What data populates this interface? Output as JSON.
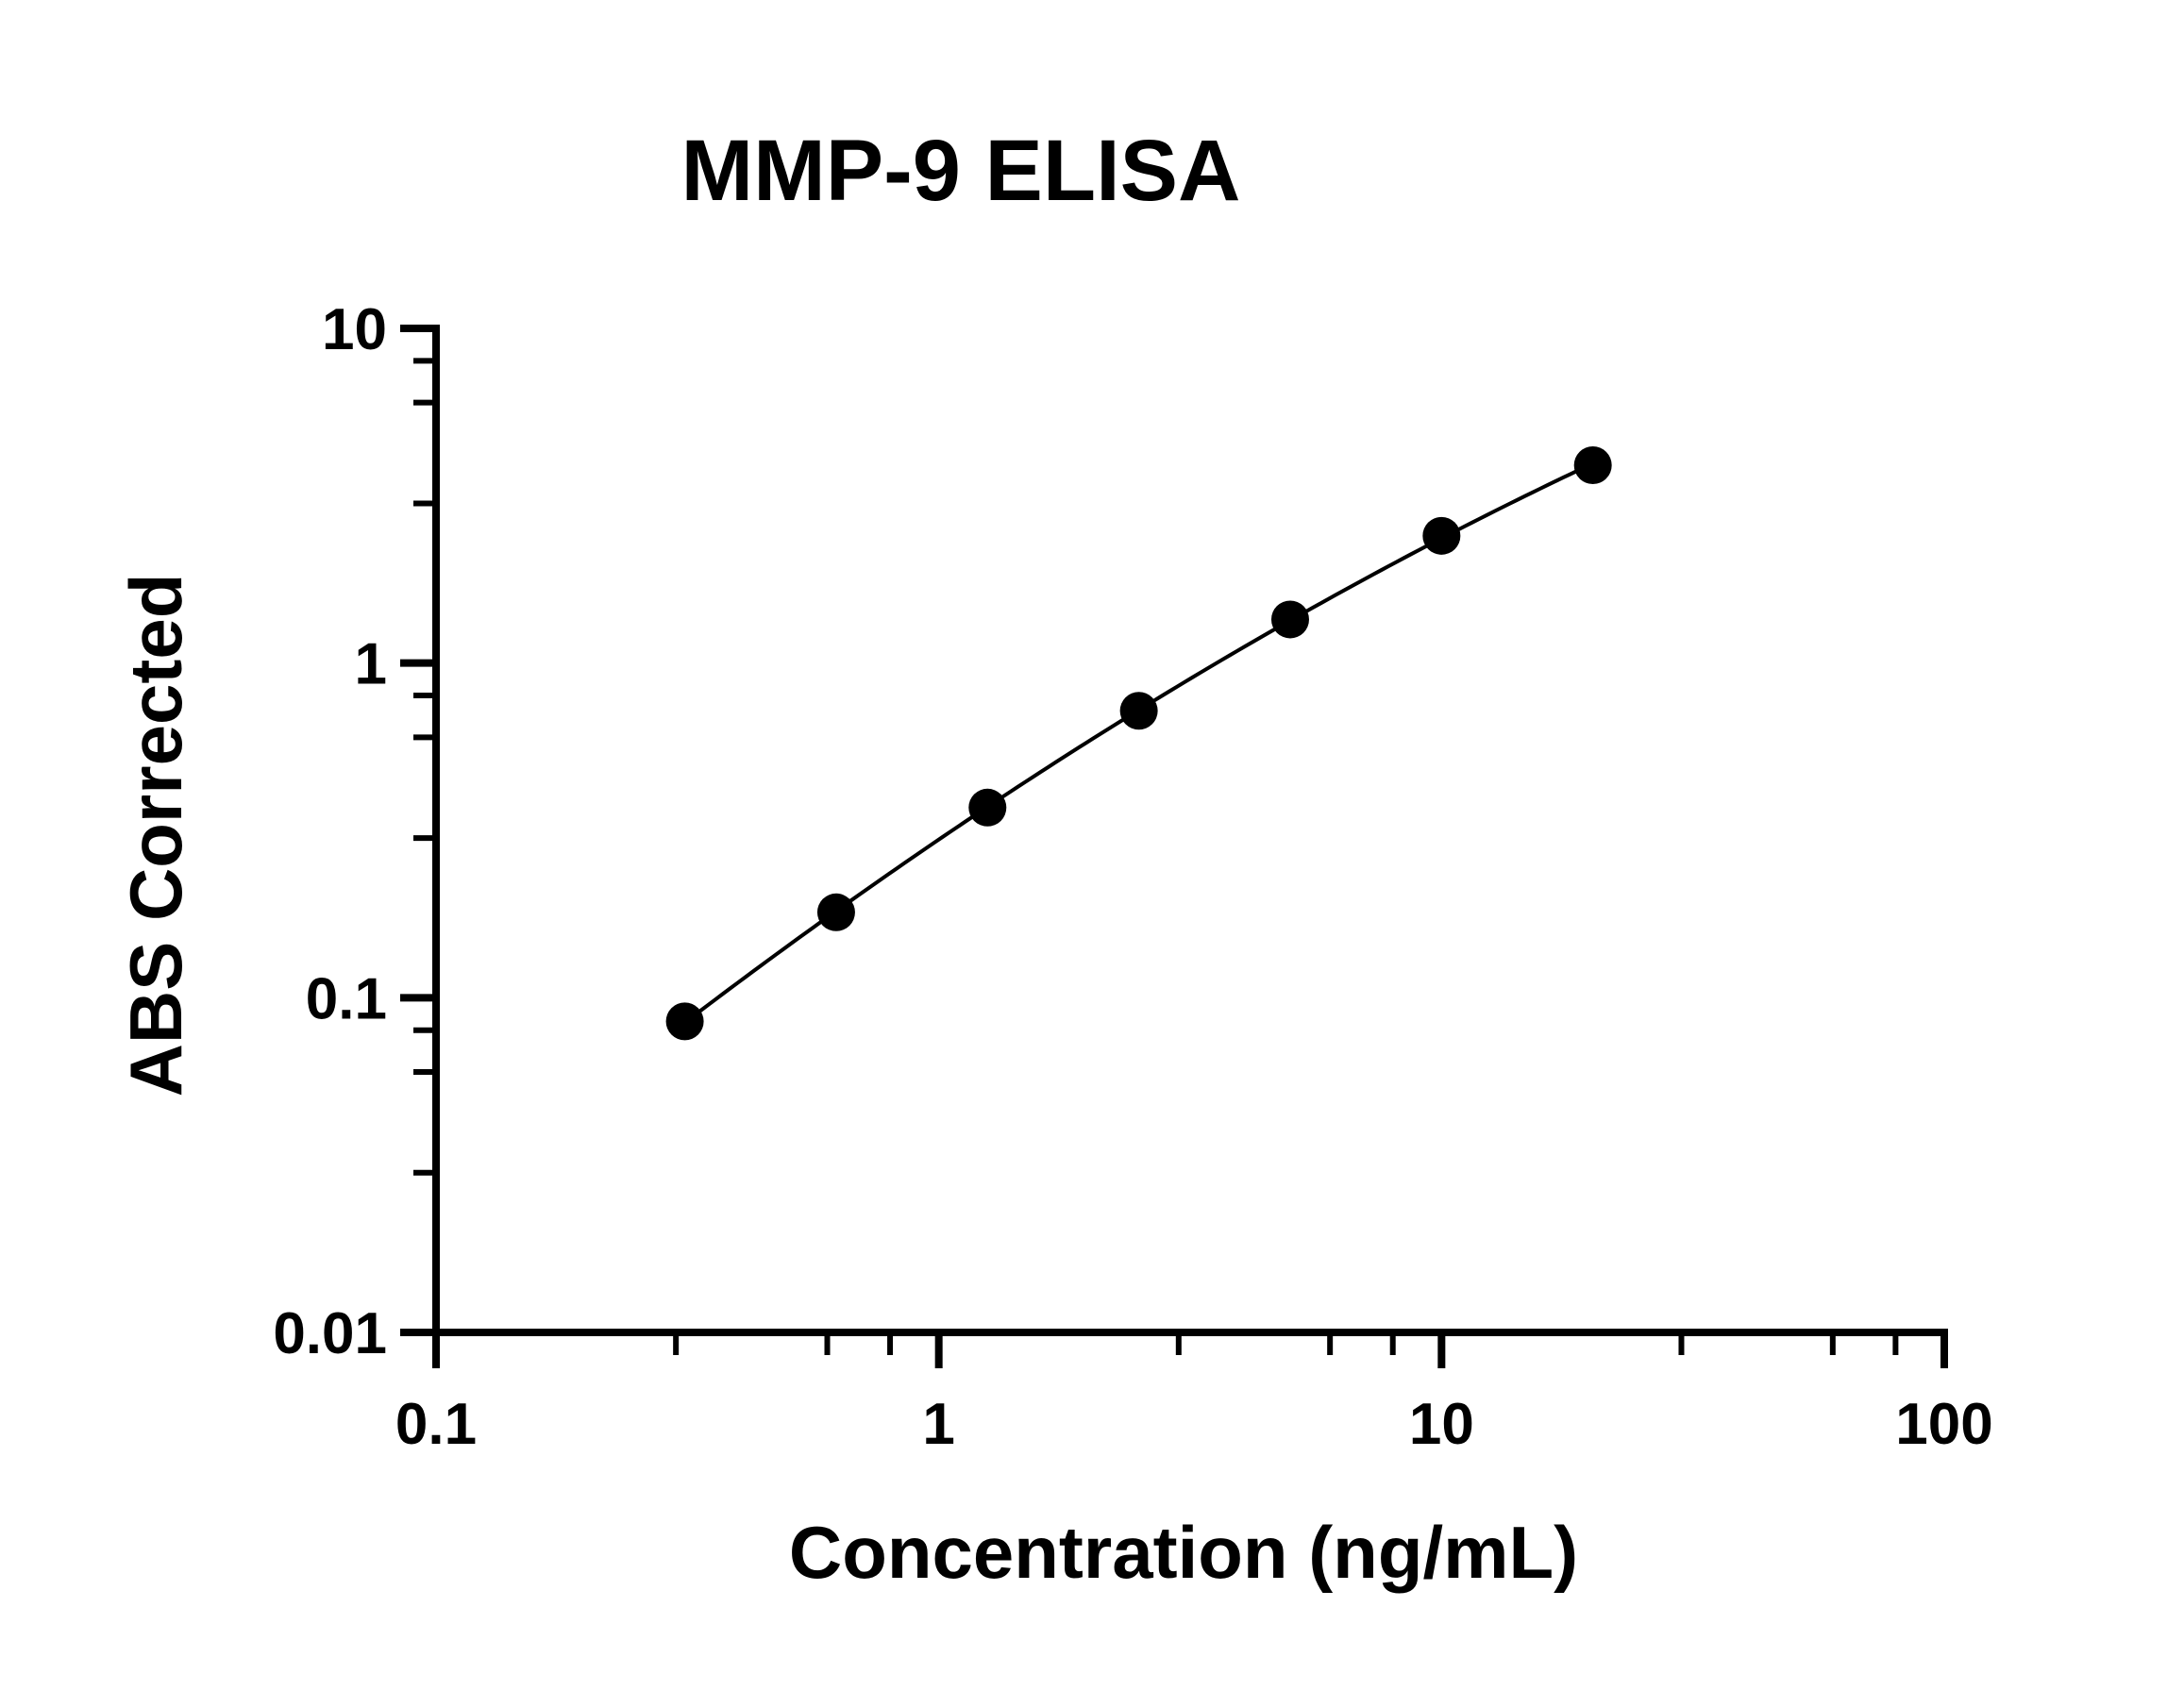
{
  "chart_data": {
    "type": "scatter",
    "title": "MMP-9 ELISA",
    "xlabel": "Concentration (ng/mL)",
    "ylabel": "ABS Corrected",
    "x_scale": "log",
    "y_scale": "log",
    "xlim": [
      0.1,
      100
    ],
    "ylim": [
      0.01,
      10
    ],
    "x_ticks": [
      {
        "value": 0.1,
        "label": "0.1"
      },
      {
        "value": 1,
        "label": "1"
      },
      {
        "value": 10,
        "label": "10"
      },
      {
        "value": 100,
        "label": "100"
      }
    ],
    "y_ticks": [
      {
        "value": 0.01,
        "label": "0.01"
      },
      {
        "value": 0.1,
        "label": "0.1"
      },
      {
        "value": 1,
        "label": "1"
      },
      {
        "value": 10,
        "label": "10"
      }
    ],
    "grid": false,
    "legend": "none",
    "fit_line": true,
    "marker_color": "#000000",
    "line_color": "#000000",
    "series": [
      {
        "x": [
          0.3125,
          0.625,
          1.25,
          2.5,
          5,
          10,
          20
        ],
        "y": [
          0.085,
          0.18,
          0.37,
          0.72,
          1.35,
          2.4,
          3.9
        ]
      }
    ]
  }
}
